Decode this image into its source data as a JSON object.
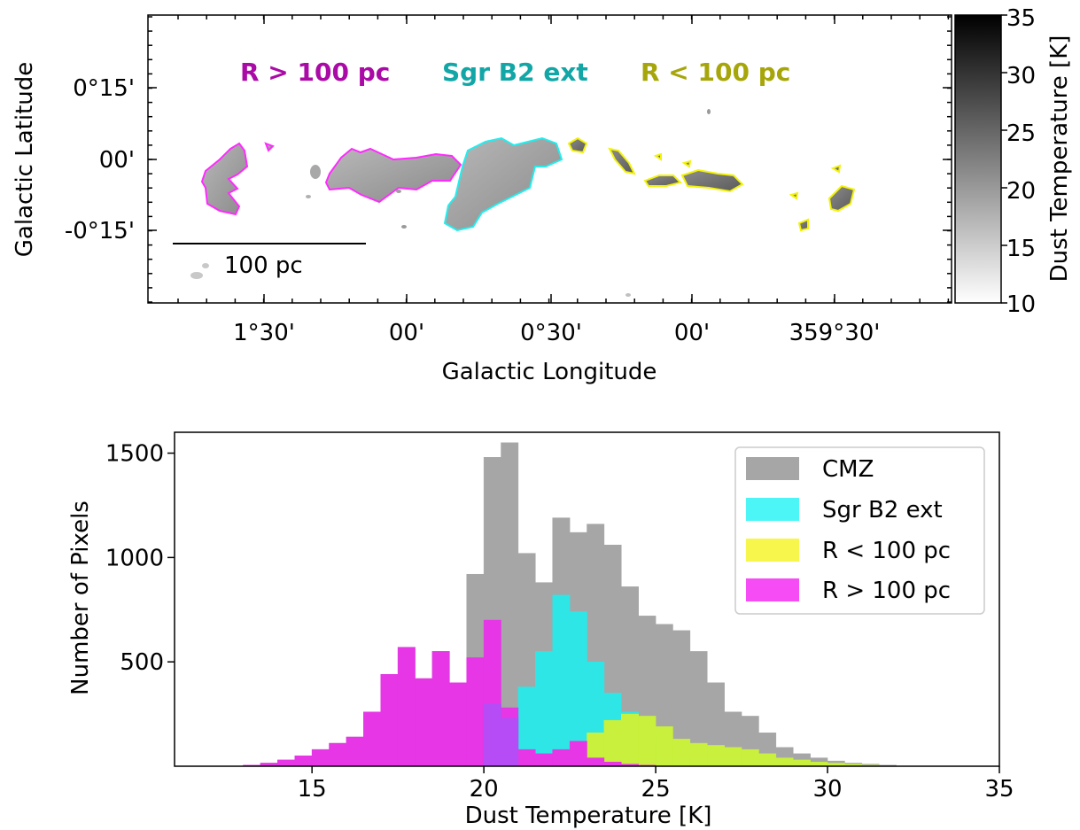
{
  "map_panel": {
    "ylabel": "Galactic Latitude",
    "xlabel": "Galactic Longitude",
    "y_ticks": [
      "0°15'",
      "00'",
      "-0°15'"
    ],
    "x_ticks": [
      "1°30'",
      "00'",
      "0°30'",
      "00'",
      "359°30'"
    ],
    "scalebar_label": "100 pc",
    "region_labels": [
      {
        "text": "R > 100 pc",
        "color": "#aa0aa6"
      },
      {
        "text": "Sgr B2 ext",
        "color": "#12a6a6"
      },
      {
        "text": "R < 100 pc",
        "color": "#a6a60a"
      }
    ],
    "contour_colors": {
      "outer": "#ff2aff",
      "sgrb2": "#22eeee",
      "inner": "#f2f20a"
    },
    "colorbar": {
      "label": "Dust Temperature [K]",
      "range": [
        10,
        35
      ],
      "ticks": [
        "35",
        "30",
        "25",
        "20",
        "15",
        "10"
      ]
    }
  },
  "chart_data": {
    "type": "bar",
    "xlabel": "Dust Temperature [K]",
    "ylabel": "Number of Pixels",
    "xlim": [
      11,
      35
    ],
    "ylim": [
      0,
      1600
    ],
    "x_ticks": [
      "15",
      "20",
      "25",
      "30",
      "35"
    ],
    "y_ticks": [
      "500",
      "1000",
      "1500"
    ],
    "legend_position": "upper right",
    "bin_start": 11,
    "bin_width": 0.5,
    "series": [
      {
        "name": "CMZ",
        "color": "#a6a6a6",
        "values": [
          0,
          0,
          0,
          0,
          5,
          15,
          30,
          50,
          80,
          110,
          140,
          260,
          440,
          570,
          420,
          550,
          400,
          920,
          1480,
          1550,
          1020,
          880,
          1190,
          1120,
          1160,
          1060,
          860,
          720,
          680,
          650,
          550,
          400,
          260,
          240,
          160,
          90,
          60,
          40,
          25,
          15,
          10,
          5,
          0,
          0,
          0,
          0,
          0,
          0
        ]
      },
      {
        "name": "Sgr B2 ext",
        "color": "#2ee6e6",
        "values": [
          0,
          0,
          0,
          0,
          0,
          0,
          0,
          0,
          0,
          0,
          0,
          0,
          0,
          0,
          0,
          0,
          0,
          0,
          0,
          50,
          380,
          550,
          820,
          740,
          500,
          350,
          260,
          150,
          100,
          50,
          25,
          10,
          5,
          0,
          0,
          0,
          0,
          0,
          0,
          0,
          0,
          0,
          0,
          0,
          0,
          0,
          0,
          0
        ]
      },
      {
        "name": "R < 100 pc",
        "color": "#c8f03c",
        "values": [
          0,
          0,
          0,
          0,
          0,
          0,
          0,
          0,
          0,
          0,
          0,
          0,
          0,
          0,
          0,
          0,
          0,
          0,
          0,
          0,
          5,
          20,
          40,
          120,
          160,
          220,
          250,
          240,
          190,
          130,
          110,
          100,
          90,
          80,
          60,
          40,
          30,
          20,
          15,
          10,
          5,
          0,
          0,
          0,
          0,
          0,
          0,
          0
        ]
      },
      {
        "name": "R > 100 pc",
        "color": "#e636e6",
        "values": [
          0,
          0,
          0,
          0,
          5,
          15,
          30,
          50,
          80,
          110,
          140,
          260,
          440,
          570,
          420,
          550,
          400,
          520,
          700,
          280,
          80,
          60,
          80,
          120,
          40,
          20,
          10,
          5,
          0,
          0,
          0,
          0,
          0,
          0,
          0,
          0,
          0,
          0,
          0,
          0,
          0,
          0,
          0,
          0,
          0,
          0,
          0,
          0
        ]
      }
    ],
    "overlaps": [
      {
        "color": "#b64cf6",
        "values": [
          0,
          0,
          0,
          0,
          0,
          0,
          0,
          0,
          0,
          0,
          0,
          0,
          0,
          0,
          0,
          0,
          0,
          0,
          300,
          230,
          0,
          0,
          0,
          0,
          0,
          0,
          0,
          0,
          0,
          0,
          0,
          0,
          0,
          0,
          0,
          0,
          0,
          0,
          0,
          0,
          0,
          0,
          0,
          0,
          0,
          0,
          0,
          0
        ]
      }
    ]
  }
}
